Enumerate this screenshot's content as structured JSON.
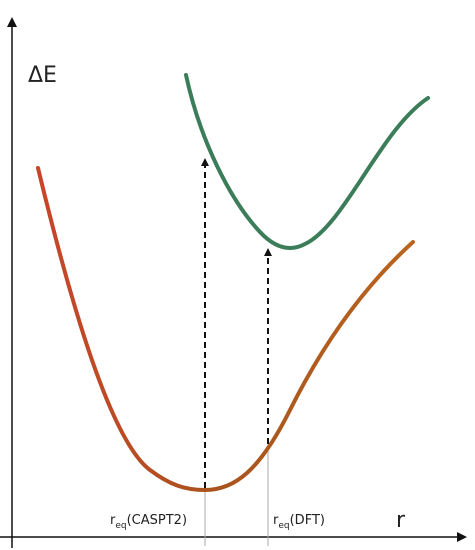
{
  "axes": {
    "y_label": "ΔE",
    "x_label": "r"
  },
  "markers": [
    {
      "main": "r",
      "sub": "eq",
      "suffix": "(CASPT2)"
    },
    {
      "main": "r",
      "sub": "eq",
      "suffix": "(DFT)"
    }
  ]
}
